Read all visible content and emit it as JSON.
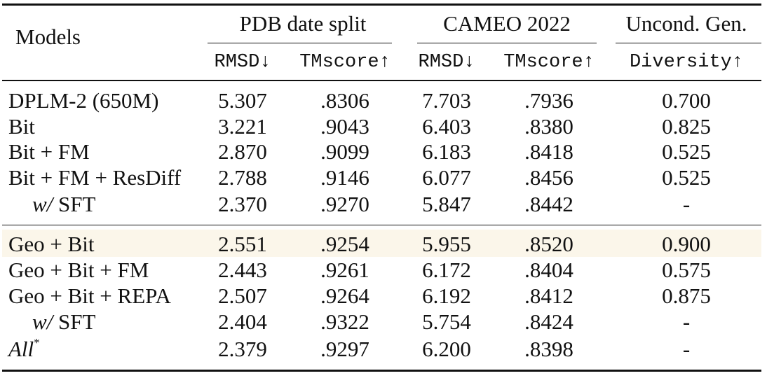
{
  "table": {
    "models_header": "Models",
    "groups": [
      {
        "label": "PDB date split"
      },
      {
        "label": "CAMEO 2022"
      },
      {
        "label": "Uncond. Gen."
      }
    ],
    "metrics": [
      "RMSD↓",
      "TMscore↑",
      "RMSD↓",
      "TMscore↑",
      "Diversity↑"
    ],
    "rows_top": [
      {
        "model": "DPLM-2 (650M)",
        "values": [
          "5.307",
          ".8306",
          "7.703",
          ".7936",
          "0.700"
        ]
      },
      {
        "model": "Bit",
        "values": [
          "3.221",
          ".9043",
          "6.403",
          ".8380",
          "0.825"
        ]
      },
      {
        "model": "Bit + FM",
        "values": [
          "2.870",
          ".9099",
          "6.183",
          ".8418",
          "0.525"
        ]
      },
      {
        "model": "Bit + FM + ResDiff",
        "values": [
          "2.788",
          ".9146",
          "6.077",
          ".8456",
          "0.525"
        ]
      },
      {
        "model_italic": "w/",
        "model_rest": " SFT",
        "values": [
          "2.370",
          ".9270",
          "5.847",
          ".8442",
          "-"
        ]
      }
    ],
    "rows_bottom": [
      {
        "model": "Geo + Bit",
        "values": [
          "2.551",
          ".9254",
          "5.955",
          ".8520",
          "0.900"
        ]
      },
      {
        "model": "Geo + Bit + FM",
        "values": [
          "2.443",
          ".9261",
          "6.172",
          ".8404",
          "0.575"
        ]
      },
      {
        "model": "Geo + Bit + REPA",
        "values": [
          "2.507",
          ".9264",
          "6.192",
          ".8412",
          "0.875"
        ]
      },
      {
        "model_italic": "w/",
        "model_rest": " SFT",
        "values": [
          "2.404",
          ".9322",
          "5.754",
          ".8424",
          "-"
        ]
      },
      {
        "model_italic": "All",
        "model_sup": "*",
        "values": [
          "2.379",
          ".9297",
          "6.200",
          ".8398",
          "-"
        ]
      }
    ],
    "highlight_color": "#fbf6ea"
  }
}
